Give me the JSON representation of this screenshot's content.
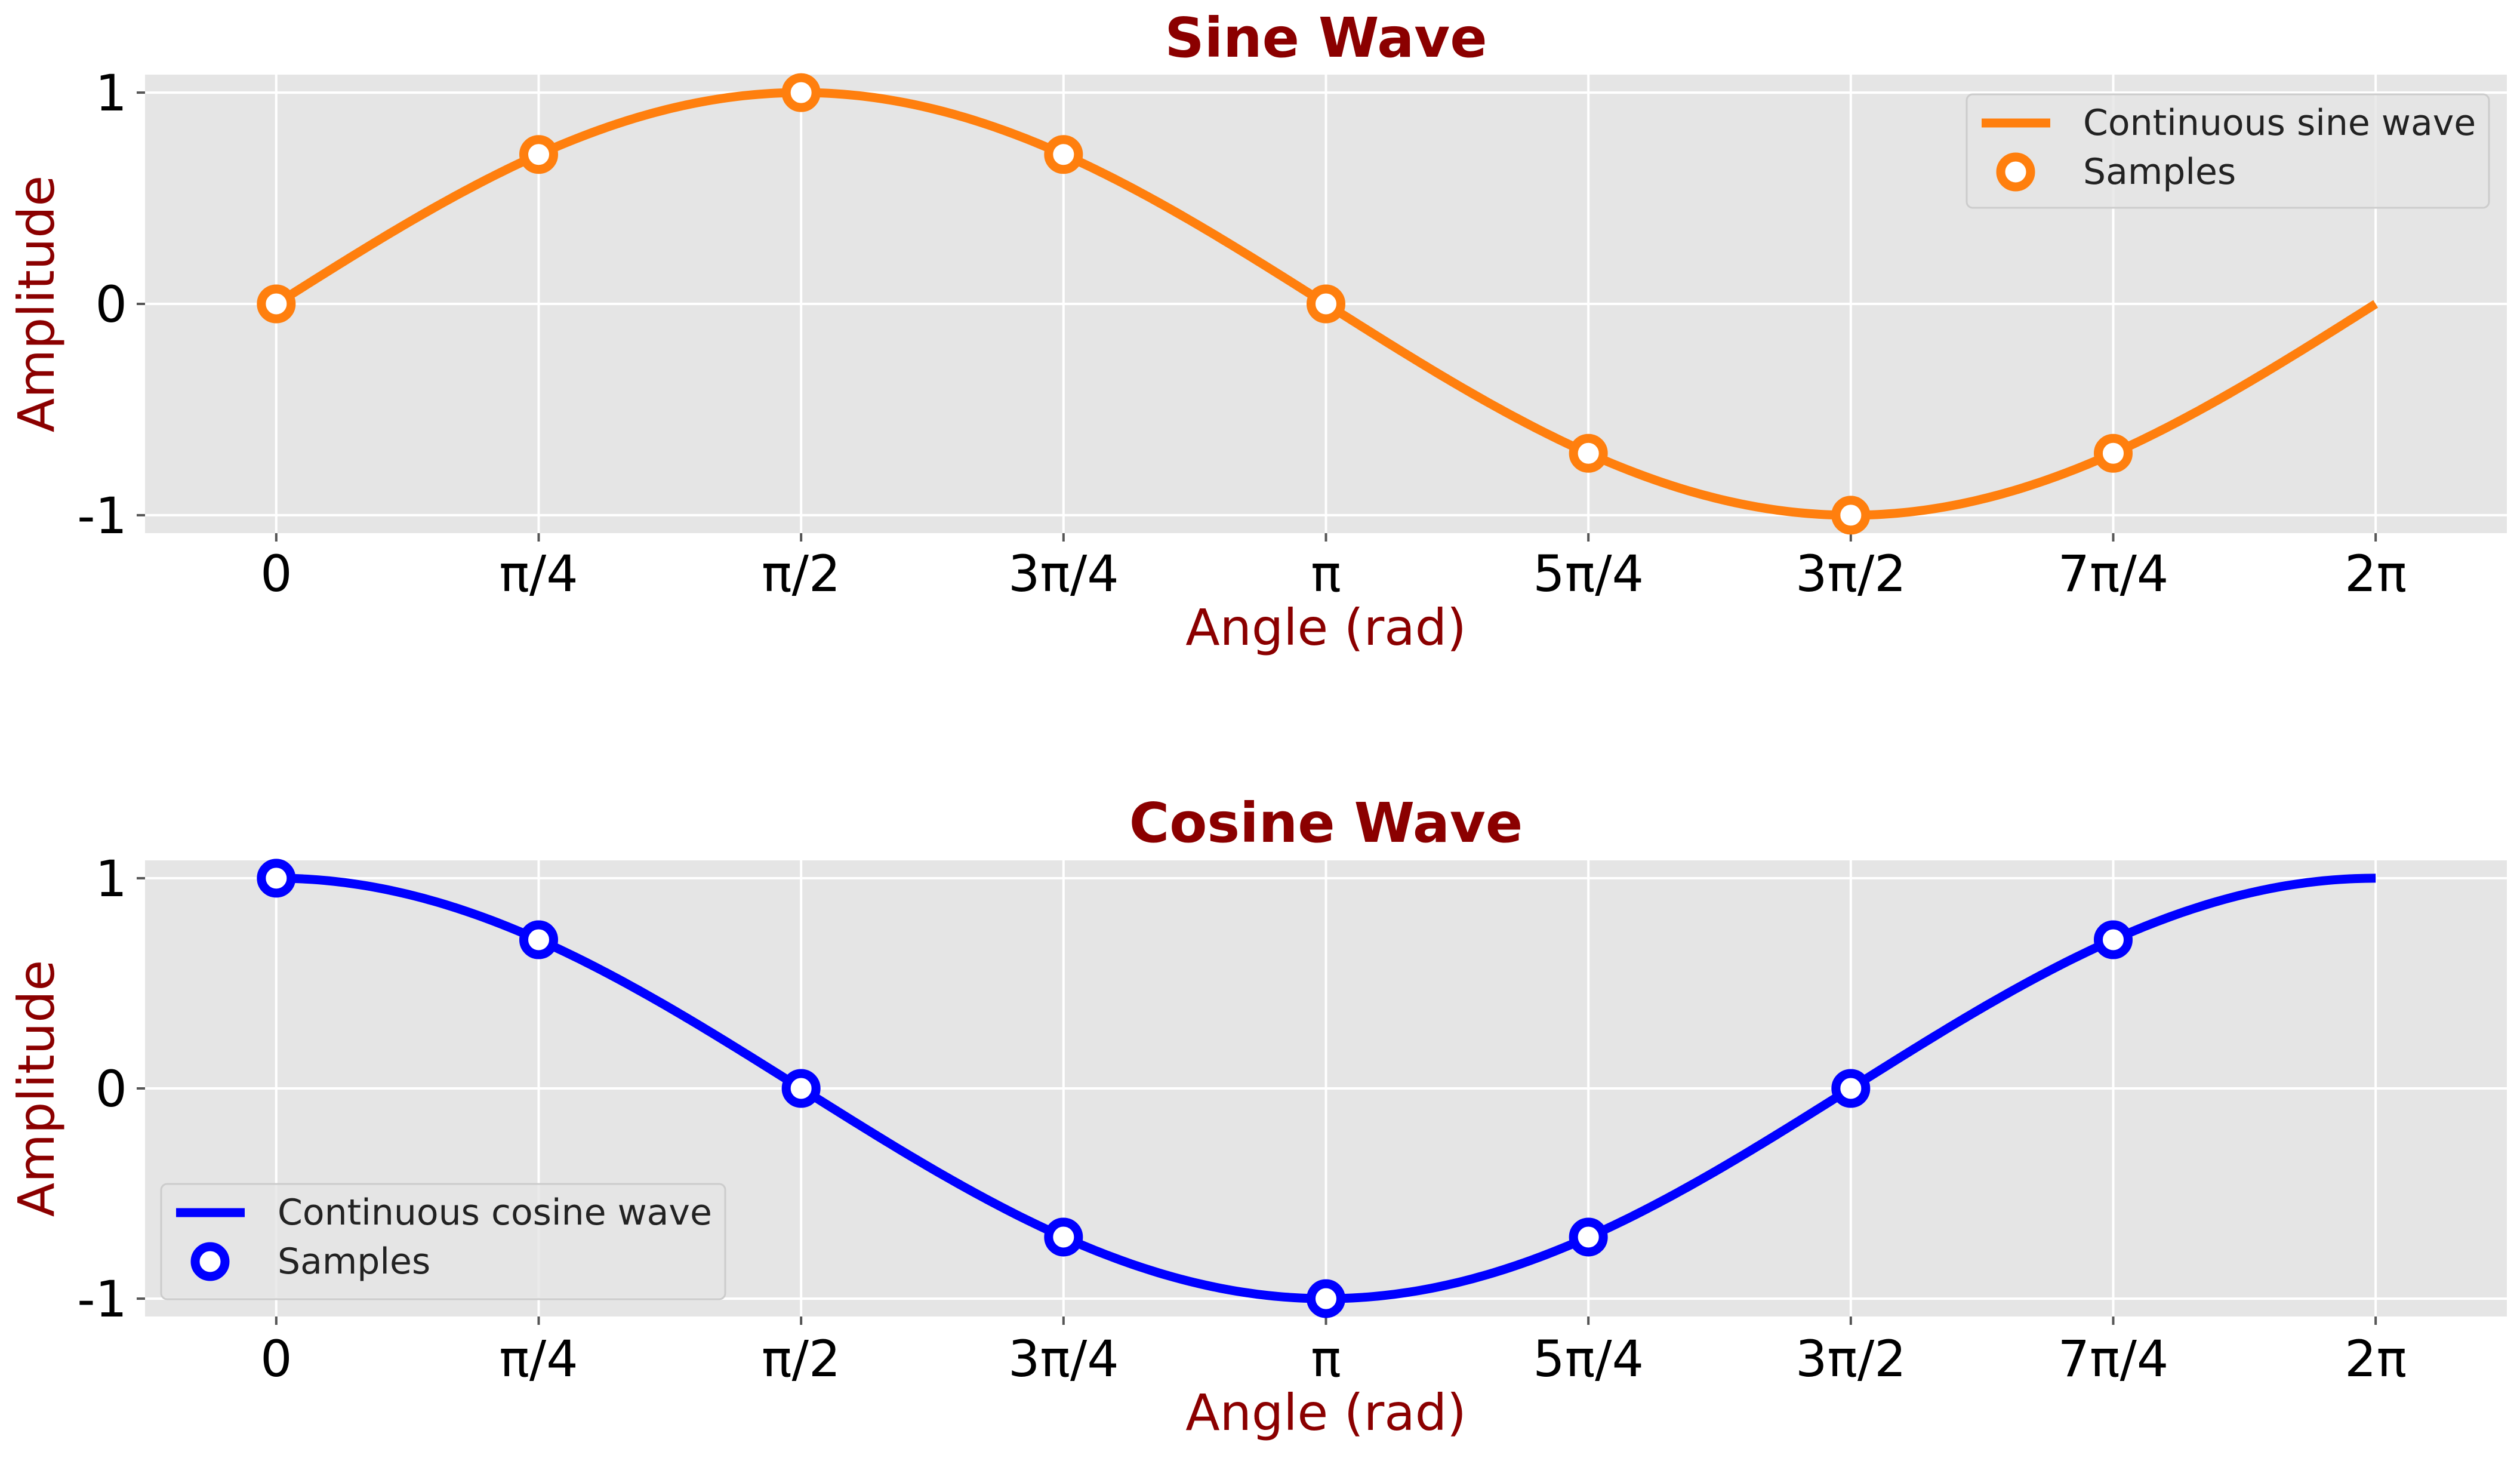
{
  "chart_data": [
    {
      "type": "line",
      "id": "sine",
      "title": "Sine Wave",
      "xlabel": "Angle (rad)",
      "ylabel": "Amplitude",
      "function": "sin",
      "x_domain_rad": [
        0,
        6.283185307179586
      ],
      "xlim_rad": [
        -0.3927,
        6.6759
      ],
      "ylim": [
        -1.085,
        1.085
      ],
      "x_ticks": {
        "values_rad": [
          0,
          0.7853981634,
          1.5707963268,
          2.3561944902,
          3.1415926536,
          3.926990817,
          4.7123889804,
          5.4977871438,
          6.2831853072
        ],
        "labels": [
          "0",
          "π/4",
          "π/2",
          "3π/4",
          "π",
          "5π/4",
          "3π/2",
          "7π/4",
          "2π"
        ]
      },
      "y_ticks": {
        "values": [
          1,
          0,
          -1
        ],
        "labels": [
          "1",
          "0",
          "-1"
        ]
      },
      "grid": true,
      "legend_position": "upper right",
      "color": "#ff7f0e",
      "series": [
        {
          "name": "Continuous sine wave",
          "kind": "line"
        },
        {
          "name": "Samples",
          "kind": "markers",
          "x_rad": [
            0,
            0.7853981634,
            1.5707963268,
            2.3561944902,
            3.1415926536,
            3.926990817,
            4.7123889804,
            5.4977871438
          ],
          "y": [
            0,
            0.7071,
            1,
            0.7071,
            0,
            -0.7071,
            -1,
            -0.7071
          ]
        }
      ]
    },
    {
      "type": "line",
      "id": "cosine",
      "title": "Cosine Wave",
      "xlabel": "Angle (rad)",
      "ylabel": "Amplitude",
      "function": "cos",
      "x_domain_rad": [
        0,
        6.283185307179586
      ],
      "xlim_rad": [
        -0.3927,
        6.6759
      ],
      "ylim": [
        -1.085,
        1.085
      ],
      "x_ticks": {
        "values_rad": [
          0,
          0.7853981634,
          1.5707963268,
          2.3561944902,
          3.1415926536,
          3.926990817,
          4.7123889804,
          5.4977871438,
          6.2831853072
        ],
        "labels": [
          "0",
          "π/4",
          "π/2",
          "3π/4",
          "π",
          "5π/4",
          "3π/2",
          "7π/4",
          "2π"
        ]
      },
      "y_ticks": {
        "values": [
          1,
          0,
          -1
        ],
        "labels": [
          "1",
          "0",
          "-1"
        ]
      },
      "grid": true,
      "legend_position": "lower left",
      "color": "#0000ff",
      "series": [
        {
          "name": "Continuous cosine wave",
          "kind": "line"
        },
        {
          "name": "Samples",
          "kind": "markers",
          "x_rad": [
            0,
            0.7853981634,
            1.5707963268,
            2.3561944902,
            3.1415926536,
            3.926990817,
            4.7123889804,
            5.4977871438
          ],
          "y": [
            1,
            0.7071,
            0,
            -0.7071,
            -1,
            -0.7071,
            0,
            0.7071
          ]
        }
      ]
    }
  ],
  "style": {
    "title_color": "#8b0000",
    "label_color": "#8b0000",
    "axes_bg": "#e5e5e5",
    "grid_color": "#ffffff"
  }
}
